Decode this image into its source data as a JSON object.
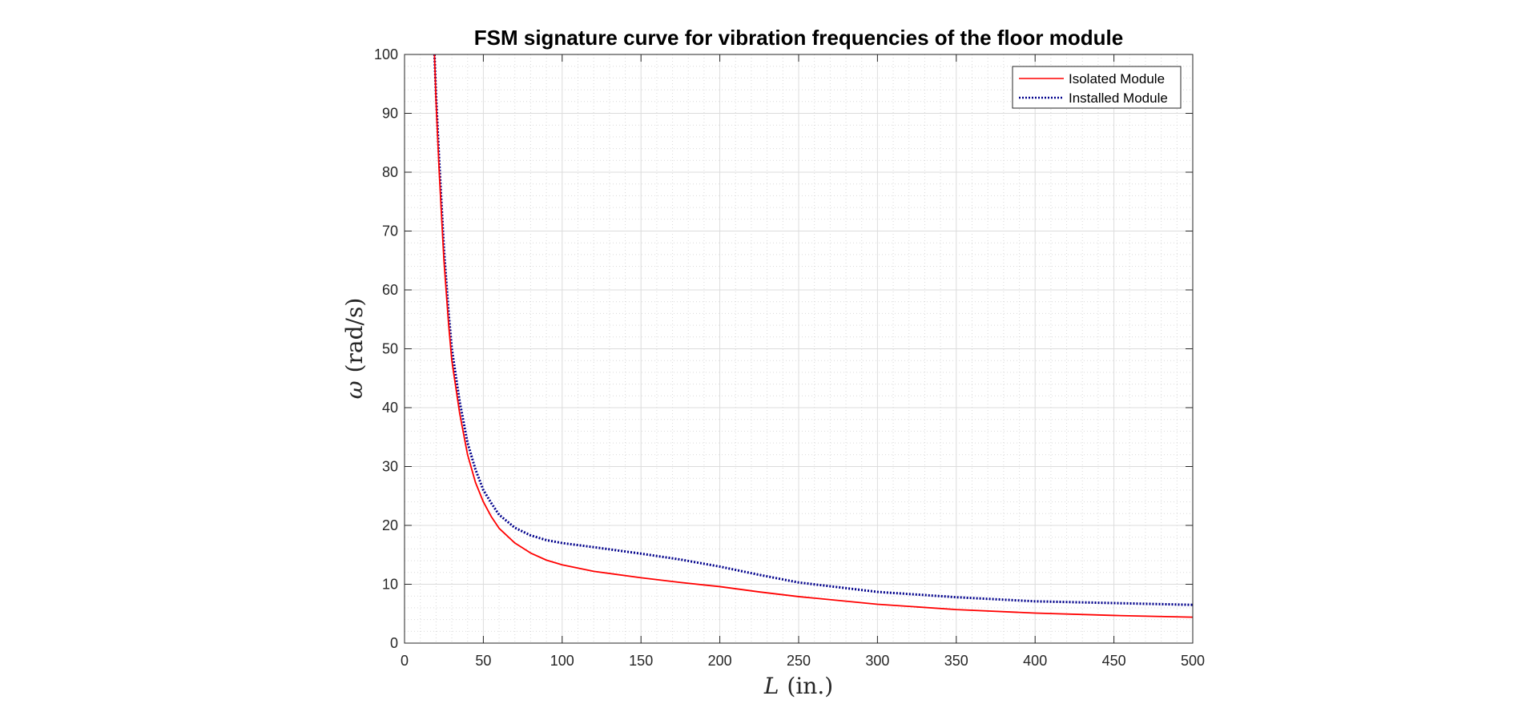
{
  "chart_data": {
    "type": "line",
    "title": "FSM signature curve for vibration frequencies of the floor module",
    "xlabel": {
      "symbol": "L",
      "unit": "(in.)"
    },
    "ylabel": {
      "symbol": "ω",
      "unit": "(rad/s)"
    },
    "xlim": [
      0,
      500
    ],
    "ylim": [
      0,
      100
    ],
    "xticks": [
      0,
      50,
      100,
      150,
      200,
      250,
      300,
      350,
      400,
      450,
      500
    ],
    "yticks": [
      0,
      10,
      20,
      30,
      40,
      50,
      60,
      70,
      80,
      90,
      100
    ],
    "grid": true,
    "minor_grid": true,
    "legend_position": "top-right",
    "x": [
      19,
      20,
      22,
      25,
      28,
      30,
      35,
      40,
      45,
      50,
      55,
      60,
      70,
      80,
      90,
      100,
      120,
      150,
      175,
      200,
      225,
      250,
      300,
      350,
      400,
      450,
      500
    ],
    "series": [
      {
        "name": "Isolated Module",
        "color": "#ff0000",
        "style": "solid",
        "values": [
          100,
          92,
          80,
          65,
          54,
          48,
          39,
          32,
          27.3,
          24,
          21.5,
          19.5,
          17,
          15.3,
          14.1,
          13.3,
          12.2,
          11.1,
          10.3,
          9.6,
          8.7,
          7.9,
          6.6,
          5.7,
          5.1,
          4.7,
          4.4
        ]
      },
      {
        "name": "Installed Module",
        "color": "#00008b",
        "style": "dotted",
        "values": [
          100,
          93,
          82,
          67,
          56,
          50,
          41,
          34,
          29.5,
          26,
          23.8,
          21.8,
          19.6,
          18.3,
          17.5,
          17,
          16.3,
          15.2,
          14.2,
          13,
          11.6,
          10.3,
          8.7,
          7.8,
          7.1,
          6.8,
          6.5
        ]
      }
    ]
  }
}
